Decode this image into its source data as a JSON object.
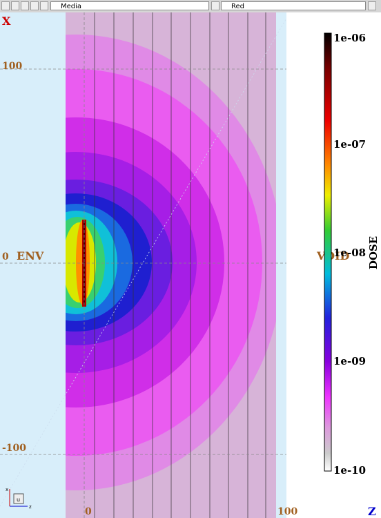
{
  "toolbar": {
    "layer_select": "Media",
    "palette_select": "Red"
  },
  "plot": {
    "vertical_axis": "X",
    "horizontal_axis": "Z",
    "vertical_ticks": [
      "100",
      "0",
      "-100"
    ],
    "horizontal_ticks": [
      "0",
      "100"
    ],
    "regions": [
      "ENV",
      "VOID"
    ],
    "orientation_widget": {
      "center": "u",
      "up": "x",
      "right": "z"
    },
    "colorbar": {
      "title": "DOSE",
      "labels": [
        "1e-06",
        "1e-07",
        "1e-08",
        "1e-09",
        "1e-10"
      ]
    }
  }
}
